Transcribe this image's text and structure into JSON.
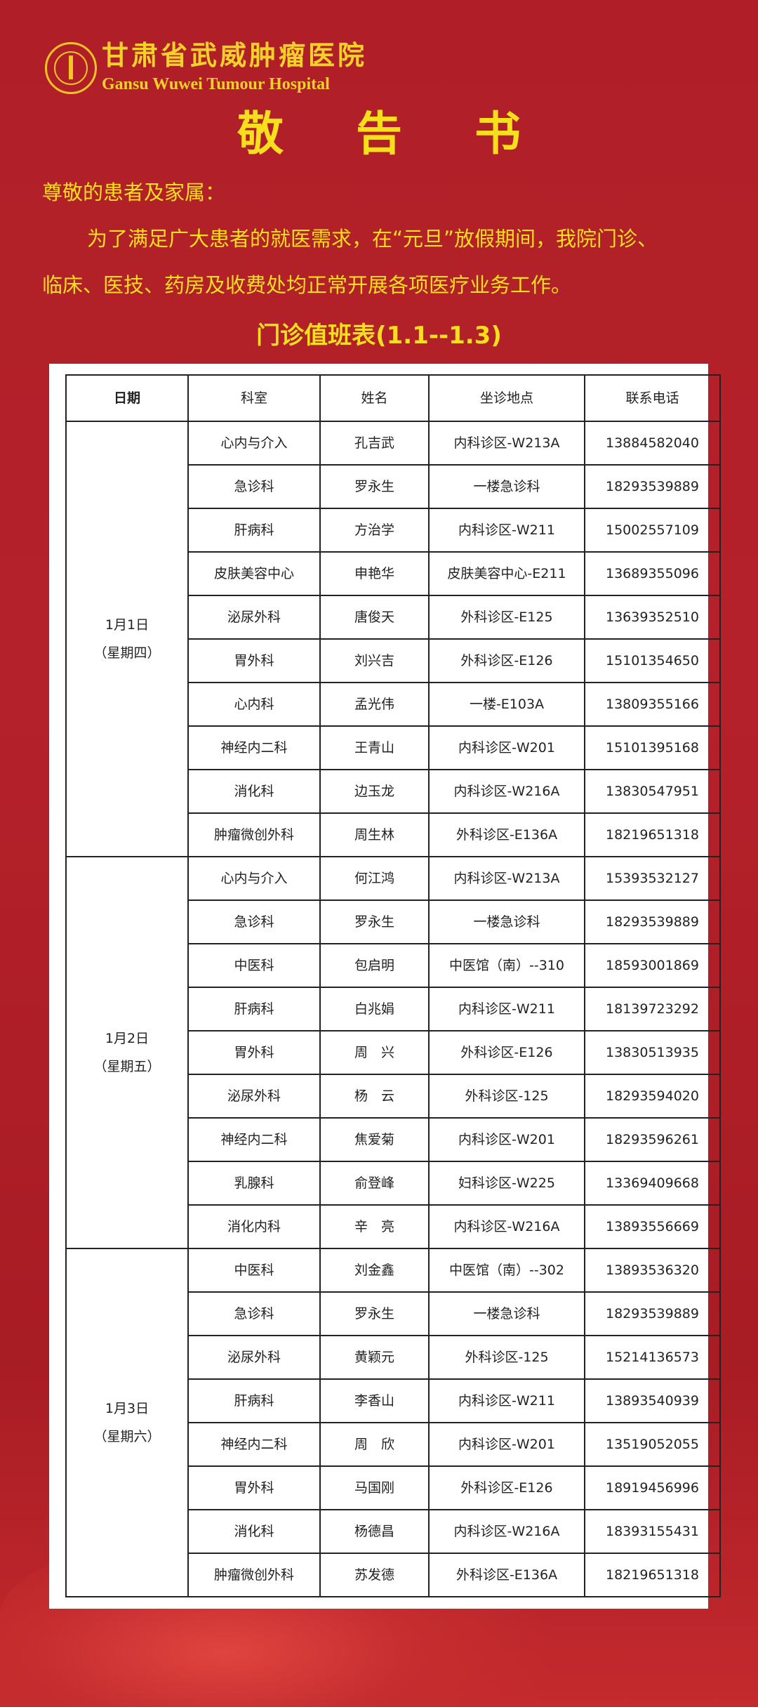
{
  "header": {
    "hospital_cn": "甘肃省武威肿瘤医院",
    "hospital_en": "Gansu Wuwei Tumour Hospital",
    "title": "敬 告 书"
  },
  "notice": {
    "greeting": "尊敬的患者及家属：",
    "line1": "为了满足广大患者的就医需求，在“元旦”放假期间，我院门诊、",
    "line2": "临床、医技、药房及收费处均正常开展各项医疗业务工作。"
  },
  "schedule_title": "门诊值班表(1.1--1.3)",
  "columns": [
    "日期",
    "科室",
    "姓名",
    "坐诊地点",
    "联系电话"
  ],
  "days": [
    {
      "date": "1月1日",
      "weekday": "（星期四）",
      "rows": [
        [
          "心内与介入",
          "孔吉武",
          "内科诊区-W213A",
          "13884582040"
        ],
        [
          "急诊科",
          "罗永生",
          "一楼急诊科",
          "18293539889"
        ],
        [
          "肝病科",
          "方治学",
          "内科诊区-W211",
          "15002557109"
        ],
        [
          "皮肤美容中心",
          "申艳华",
          "皮肤美容中心-E211",
          "13689355096"
        ],
        [
          "泌尿外科",
          "唐俊天",
          "外科诊区-E125",
          "13639352510"
        ],
        [
          "胃外科",
          "刘兴吉",
          "外科诊区-E126",
          "15101354650"
        ],
        [
          "心内科",
          "孟光伟",
          "一楼-E103A",
          "13809355166"
        ],
        [
          "神经内二科",
          "王青山",
          "内科诊区-W201",
          "15101395168"
        ],
        [
          "消化科",
          "边玉龙",
          "内科诊区-W216A",
          "13830547951"
        ],
        [
          "肿瘤微创外科",
          "周生林",
          "外科诊区-E136A",
          "18219651318"
        ]
      ]
    },
    {
      "date": "1月2日",
      "weekday": "（星期五）",
      "rows": [
        [
          "心内与介入",
          "何江鸿",
          "内科诊区-W213A",
          "15393532127"
        ],
        [
          "急诊科",
          "罗永生",
          "一楼急诊科",
          "18293539889"
        ],
        [
          "中医科",
          "包启明",
          "中医馆（南）--310",
          "18593001869"
        ],
        [
          "肝病科",
          "白兆娟",
          "内科诊区-W211",
          "18139723292"
        ],
        [
          "胃外科",
          "周　兴",
          "外科诊区-E126",
          "13830513935"
        ],
        [
          "泌尿外科",
          "杨　云",
          "外科诊区-125",
          "18293594020"
        ],
        [
          "神经内二科",
          "焦爱菊",
          "内科诊区-W201",
          "18293596261"
        ],
        [
          "乳腺科",
          "俞登峰",
          "妇科诊区-W225",
          "13369409668"
        ],
        [
          "消化内科",
          "辛　亮",
          "内科诊区-W216A",
          "13893556669"
        ]
      ]
    },
    {
      "date": "1月3日",
      "weekday": "（星期六）",
      "rows": [
        [
          "中医科",
          "刘金鑫",
          "中医馆（南）--302",
          "13893536320"
        ],
        [
          "急诊科",
          "罗永生",
          "一楼急诊科",
          "18293539889"
        ],
        [
          "泌尿外科",
          "黄颖元",
          "外科诊区-125",
          "15214136573"
        ],
        [
          "肝病科",
          "李香山",
          "内科诊区-W211",
          "13893540939"
        ],
        [
          "神经内二科",
          "周　欣",
          "内科诊区-W201",
          "13519052055"
        ],
        [
          "胃外科",
          "马国刚",
          "外科诊区-E126",
          "18919456996"
        ],
        [
          "消化科",
          "杨德昌",
          "内科诊区-W216A",
          "18393155431"
        ],
        [
          "肿瘤微创外科",
          "苏发德",
          "外科诊区-E136A",
          "18219651318"
        ]
      ]
    }
  ],
  "colors": {
    "background": "#b01f27",
    "text_yellow": "#f7df1e"
  }
}
